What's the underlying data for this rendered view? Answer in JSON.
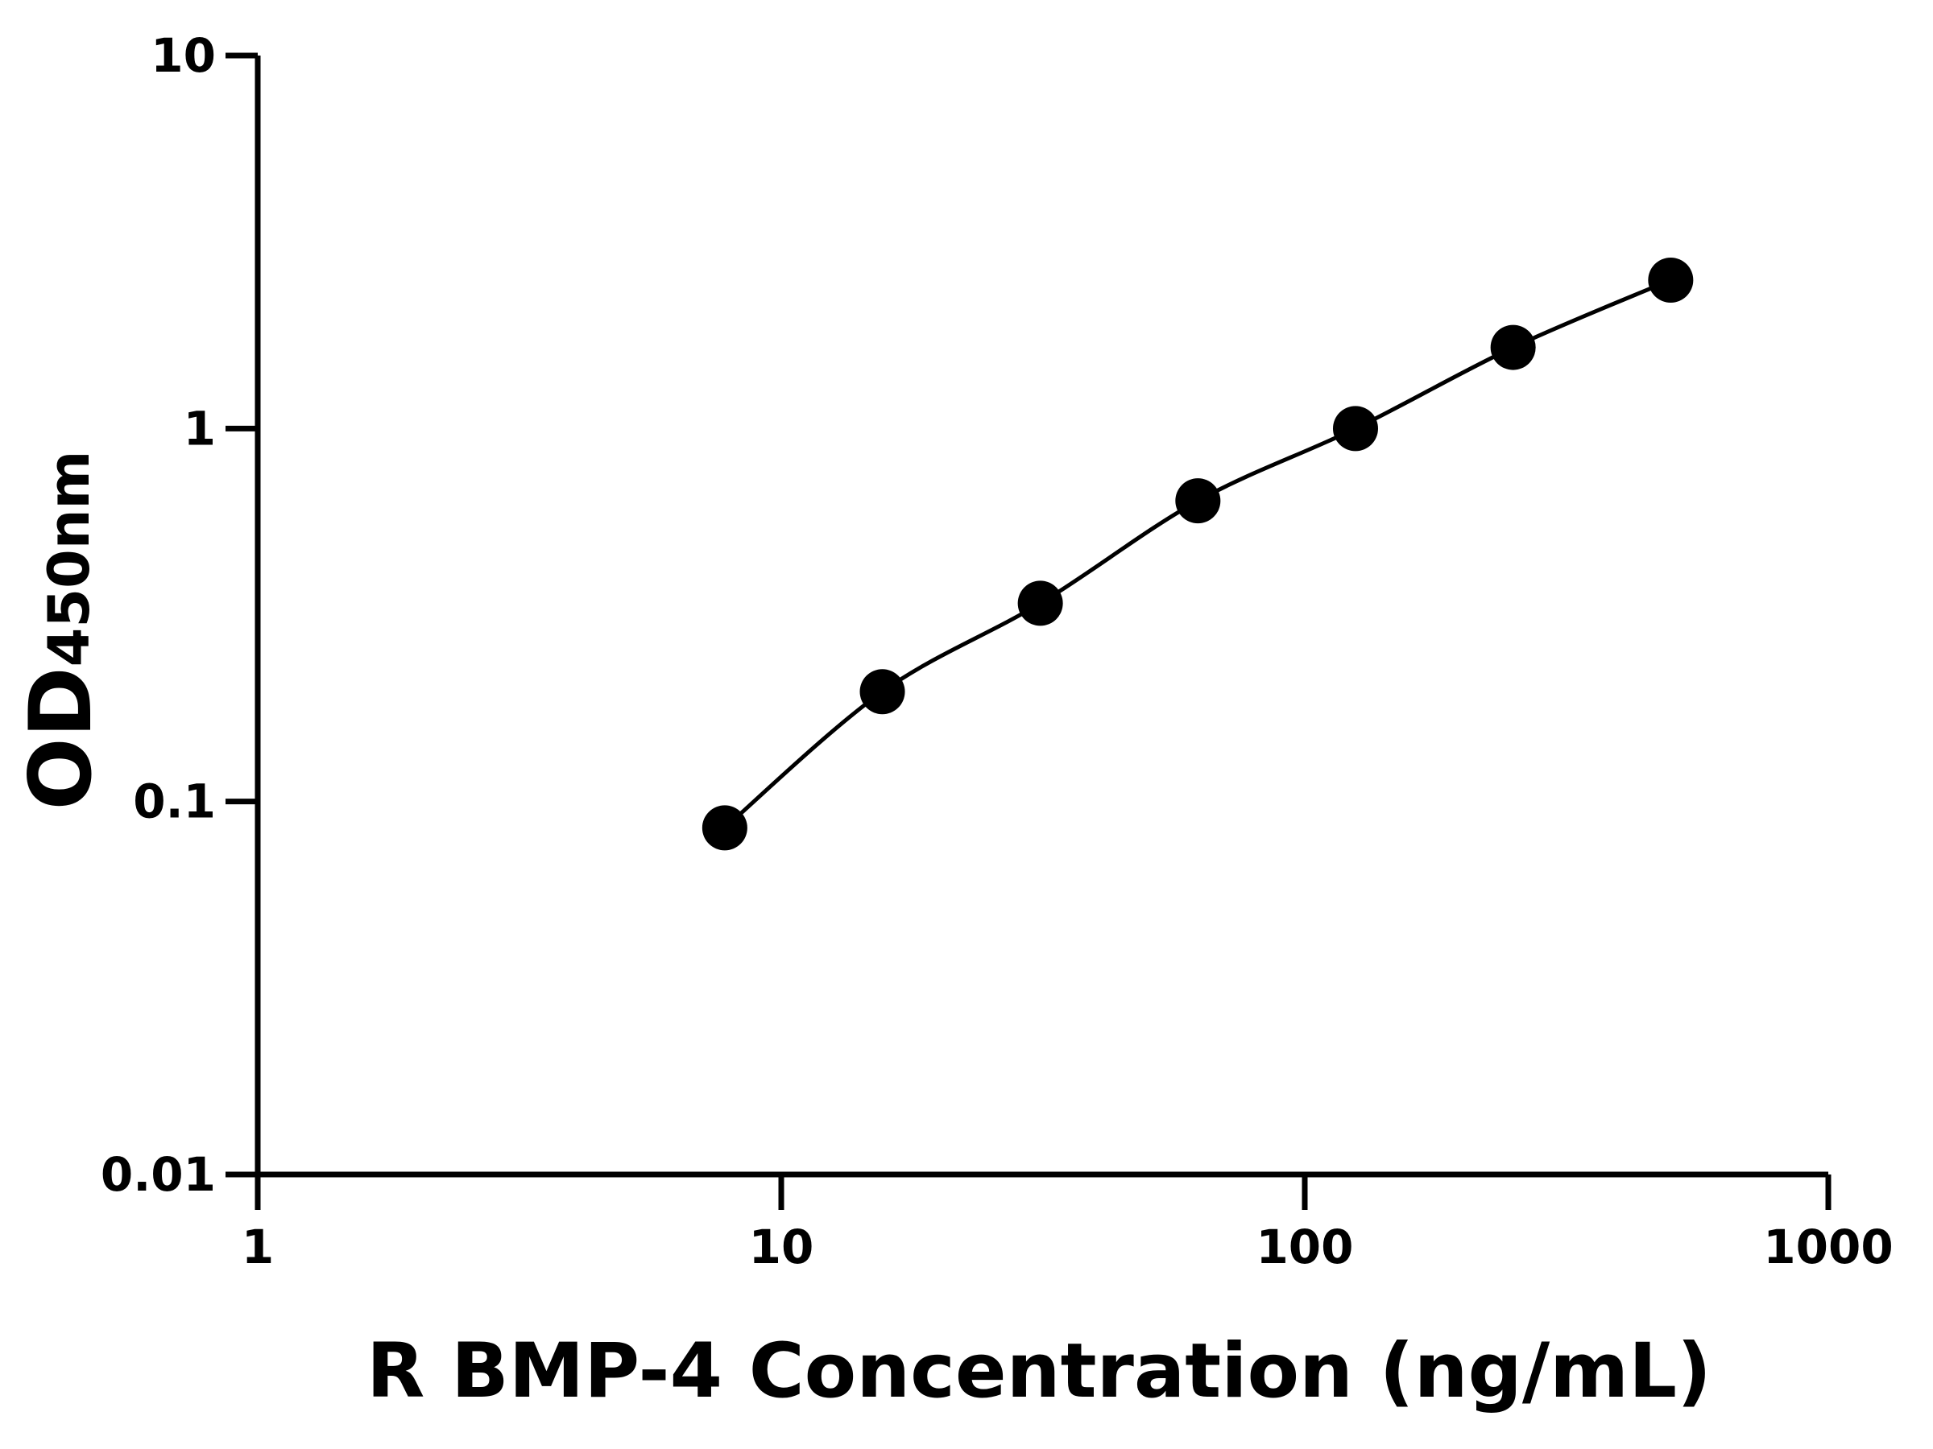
{
  "chart_data": {
    "type": "scatter",
    "x_label": "R BMP-4 Concentration (ng/mL)",
    "y_label": "OD",
    "y_label_sub": "450nm",
    "x": [
      7.8,
      15.6,
      31.25,
      62.5,
      125,
      250,
      500
    ],
    "values": [
      0.085,
      0.197,
      0.34,
      0.64,
      1.0,
      1.65,
      2.5
    ],
    "color": "#000000",
    "xlim": [
      1,
      1000
    ],
    "xticks": [
      1,
      10,
      100,
      1000
    ],
    "ylim": [
      0.01,
      10
    ],
    "yticks": [
      0.01,
      0.1,
      1,
      10
    ],
    "xscale": "log",
    "yscale": "log",
    "grid": false
  }
}
